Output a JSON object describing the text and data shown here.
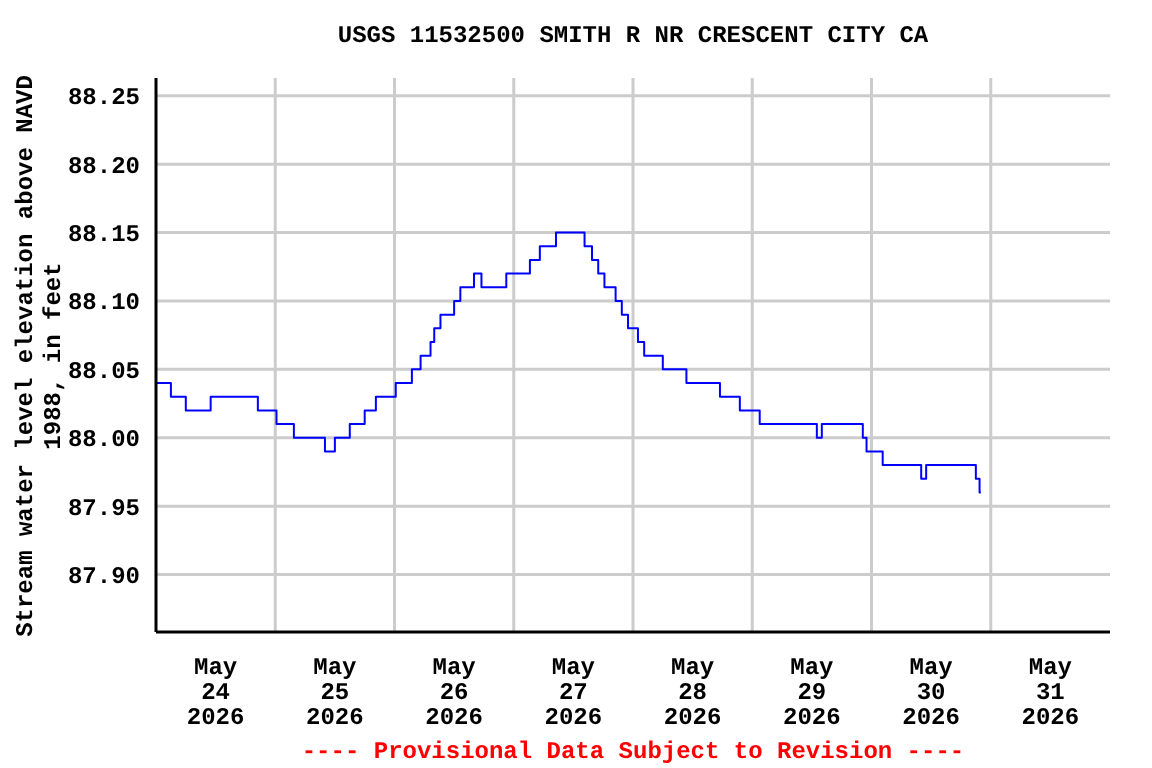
{
  "chart_data": {
    "type": "step",
    "title": "USGS 11532500 SMITH R NR CRESCENT CITY CA",
    "ylabel": "Stream water level elevation above NAVD\n1988, in feet",
    "annotations": [
      "---- Provisional Data Subject to Revision ----"
    ],
    "x": [
      "2026-05-24T00:00",
      "2026-05-24T03:00",
      "2026-05-24T06:00",
      "2026-05-24T11:00",
      "2026-05-24T20:30",
      "2026-05-25T00:15",
      "2026-05-25T03:45",
      "2026-05-25T10:00",
      "2026-05-25T12:00",
      "2026-05-25T15:00",
      "2026-05-25T18:00",
      "2026-05-25T20:15",
      "2026-05-26T00:15",
      "2026-05-26T03:30",
      "2026-05-26T05:15",
      "2026-05-26T07:15",
      "2026-05-26T08:00",
      "2026-05-26T09:15",
      "2026-05-26T12:00",
      "2026-05-26T13:15",
      "2026-05-26T16:00",
      "2026-05-26T17:30",
      "2026-05-26T22:30",
      "2026-05-27T03:15",
      "2026-05-27T05:15",
      "2026-05-27T08:30",
      "2026-05-27T14:15",
      "2026-05-27T15:45",
      "2026-05-27T17:00",
      "2026-05-27T18:15",
      "2026-05-27T20:30",
      "2026-05-27T21:45",
      "2026-05-27T23:00",
      "2026-05-28T01:00",
      "2026-05-28T02:15",
      "2026-05-28T06:00",
      "2026-05-28T10:45",
      "2026-05-28T17:30",
      "2026-05-28T21:30",
      "2026-05-29T01:30",
      "2026-05-29T13:00",
      "2026-05-29T14:00",
      "2026-05-29T22:15",
      "2026-05-29T23:00",
      "2026-05-30T02:15",
      "2026-05-30T10:00",
      "2026-05-30T11:00",
      "2026-05-30T21:00",
      "2026-05-30T21:45",
      "2026-05-30T22:00"
    ],
    "series": [
      {
        "color": "#0000ff",
        "values": [
          88.04,
          88.03,
          88.02,
          88.03,
          88.02,
          88.01,
          88.0,
          87.99,
          88.0,
          88.01,
          88.02,
          88.03,
          88.04,
          88.05,
          88.06,
          88.07,
          88.08,
          88.09,
          88.1,
          88.11,
          88.12,
          88.11,
          88.12,
          88.13,
          88.14,
          88.15,
          88.14,
          88.13,
          88.12,
          88.11,
          88.1,
          88.09,
          88.08,
          88.07,
          88.06,
          88.05,
          88.04,
          88.03,
          88.02,
          88.01,
          88.0,
          88.01,
          88.0,
          87.99,
          87.98,
          87.97,
          87.98,
          87.97,
          87.96,
          87.96
        ]
      }
    ],
    "xlim": [
      "2026-05-24T00:00",
      "2026-06-01T00:00"
    ],
    "xticks": [
      {
        "value": "2026-05-24T12:00",
        "label": "May\n24\n2026"
      },
      {
        "value": "2026-05-25T00:00",
        "label": null
      },
      {
        "value": "2026-05-25T12:00",
        "label": "May\n25\n2026"
      },
      {
        "value": "2026-05-26T00:00",
        "label": null
      },
      {
        "value": "2026-05-26T12:00",
        "label": "May\n26\n2026"
      },
      {
        "value": "2026-05-27T00:00",
        "label": null
      },
      {
        "value": "2026-05-27T12:00",
        "label": "May\n27\n2026"
      },
      {
        "value": "2026-05-28T00:00",
        "label": null
      },
      {
        "value": "2026-05-28T12:00",
        "label": "May\n28\n2026"
      },
      {
        "value": "2026-05-29T00:00",
        "label": null
      },
      {
        "value": "2026-05-29T12:00",
        "label": "May\n29\n2026"
      },
      {
        "value": "2026-05-30T00:00",
        "label": null
      },
      {
        "value": "2026-05-30T12:00",
        "label": "May\n30\n2026"
      },
      {
        "value": "2026-05-31T00:00",
        "label": null
      },
      {
        "value": "2026-05-31T12:00",
        "label": "May\n31\n2026"
      }
    ],
    "ylim": [
      87.858,
      88.263
    ],
    "yticks": [
      {
        "value": 87.9,
        "label": "87.90"
      },
      {
        "value": 87.95,
        "label": "87.95"
      },
      {
        "value": 88.0,
        "label": "88.00"
      },
      {
        "value": 88.05,
        "label": "88.05"
      },
      {
        "value": 88.1,
        "label": "88.10"
      },
      {
        "value": 88.15,
        "label": "88.15"
      },
      {
        "value": 88.2,
        "label": "88.20"
      },
      {
        "value": 88.25,
        "label": "88.25"
      }
    ],
    "grid": true,
    "legend": false,
    "marker": "none",
    "line_style": "solid"
  }
}
